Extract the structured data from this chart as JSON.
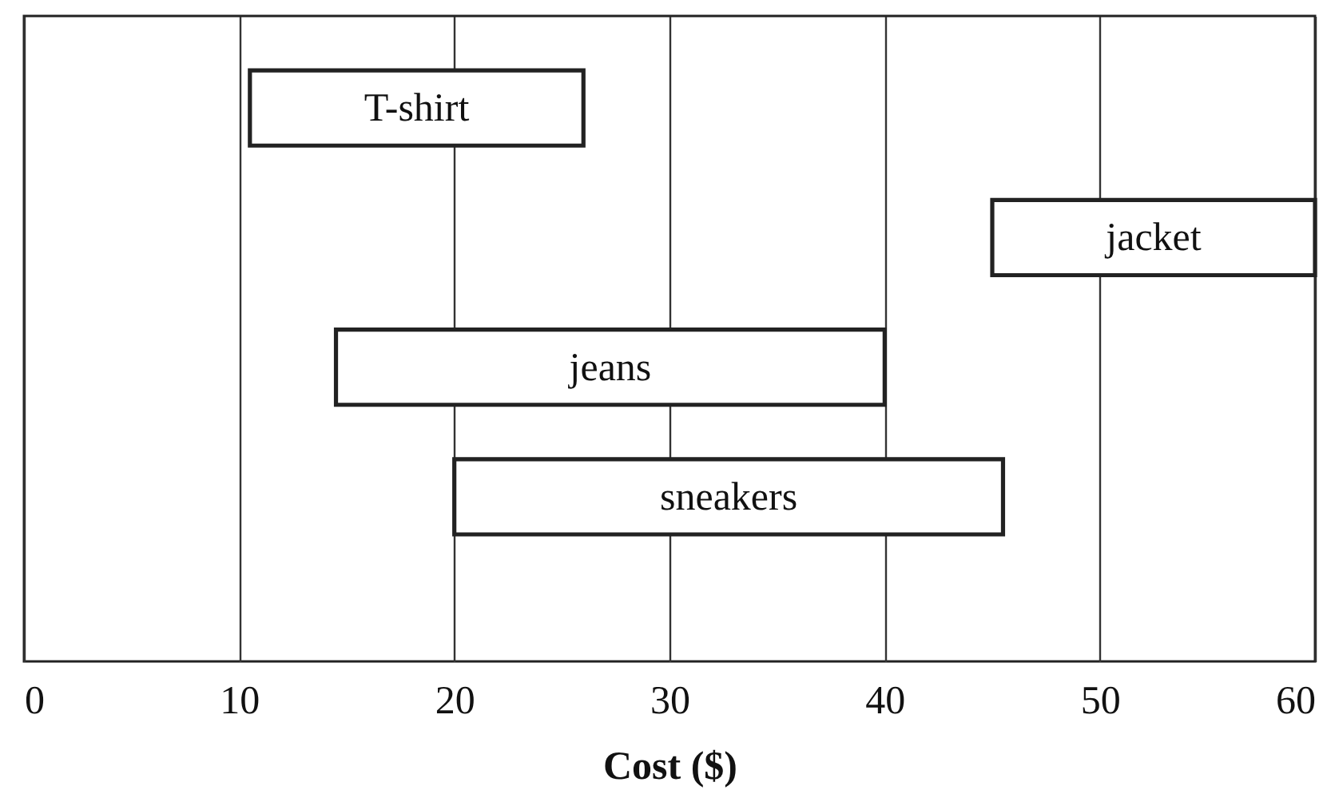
{
  "chart_data": {
    "type": "bar",
    "orientation": "horizontal",
    "categories": [
      "T-shirt",
      "jacket",
      "jeans",
      "sneakers"
    ],
    "base": [
      10.5,
      45,
      14.5,
      20
    ],
    "values": [
      15.5,
      15,
      25.5,
      25.5
    ],
    "color": "#ffffff",
    "xlabel": "Cost ($)",
    "xlim": [
      0,
      60
    ],
    "xticks": [
      0,
      10,
      20,
      30,
      40,
      50,
      60
    ],
    "grid": "x",
    "tick_labels": "x"
  }
}
